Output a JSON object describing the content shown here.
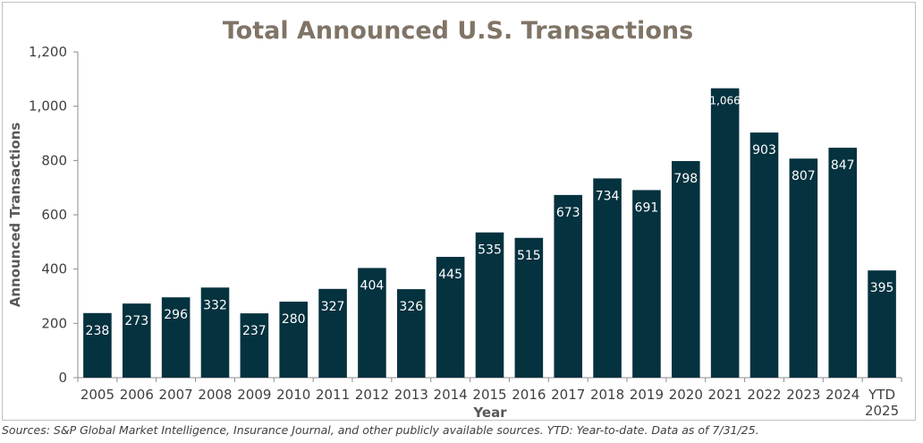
{
  "chart_data": {
    "type": "bar",
    "title": "Total Announced U.S. Transactions",
    "xlabel": "Year",
    "ylabel": "Announced Transactions",
    "ylim": [
      0,
      1200
    ],
    "yticks": [
      0,
      200,
      400,
      600,
      800,
      1000,
      1200
    ],
    "ytick_labels": [
      "0",
      "200",
      "400",
      "600",
      "800",
      "1,000",
      "1,200"
    ],
    "categories": [
      "2005",
      "2006",
      "2007",
      "2008",
      "2009",
      "2010",
      "2011",
      "2012",
      "2013",
      "2014",
      "2015",
      "2016",
      "2017",
      "2018",
      "2019",
      "2020",
      "2021",
      "2022",
      "2023",
      "2024",
      "YTD 2025"
    ],
    "category_lines": [
      [
        "2005"
      ],
      [
        "2006"
      ],
      [
        "2007"
      ],
      [
        "2008"
      ],
      [
        "2009"
      ],
      [
        "2010"
      ],
      [
        "2011"
      ],
      [
        "2012"
      ],
      [
        "2013"
      ],
      [
        "2014"
      ],
      [
        "2015"
      ],
      [
        "2016"
      ],
      [
        "2017"
      ],
      [
        "2018"
      ],
      [
        "2019"
      ],
      [
        "2020"
      ],
      [
        "2021"
      ],
      [
        "2022"
      ],
      [
        "2023"
      ],
      [
        "2024"
      ],
      [
        "YTD",
        "2025"
      ]
    ],
    "values": [
      238,
      273,
      296,
      332,
      237,
      280,
      327,
      404,
      326,
      445,
      535,
      515,
      673,
      734,
      691,
      798,
      1066,
      903,
      807,
      847,
      395
    ],
    "value_labels": [
      "238",
      "273",
      "296",
      "332",
      "237",
      "280",
      "327",
      "404",
      "326",
      "445",
      "535",
      "515",
      "673",
      "734",
      "691",
      "798",
      "1,066",
      "903",
      "807",
      "847",
      "395"
    ],
    "grid": false,
    "bar_color": "#05323f"
  },
  "footnote": "Sources: S&P Global Market Intelligence, Insurance Journal, and other publicly available sources. YTD: Year-to-date. Data as of 7/31/25."
}
